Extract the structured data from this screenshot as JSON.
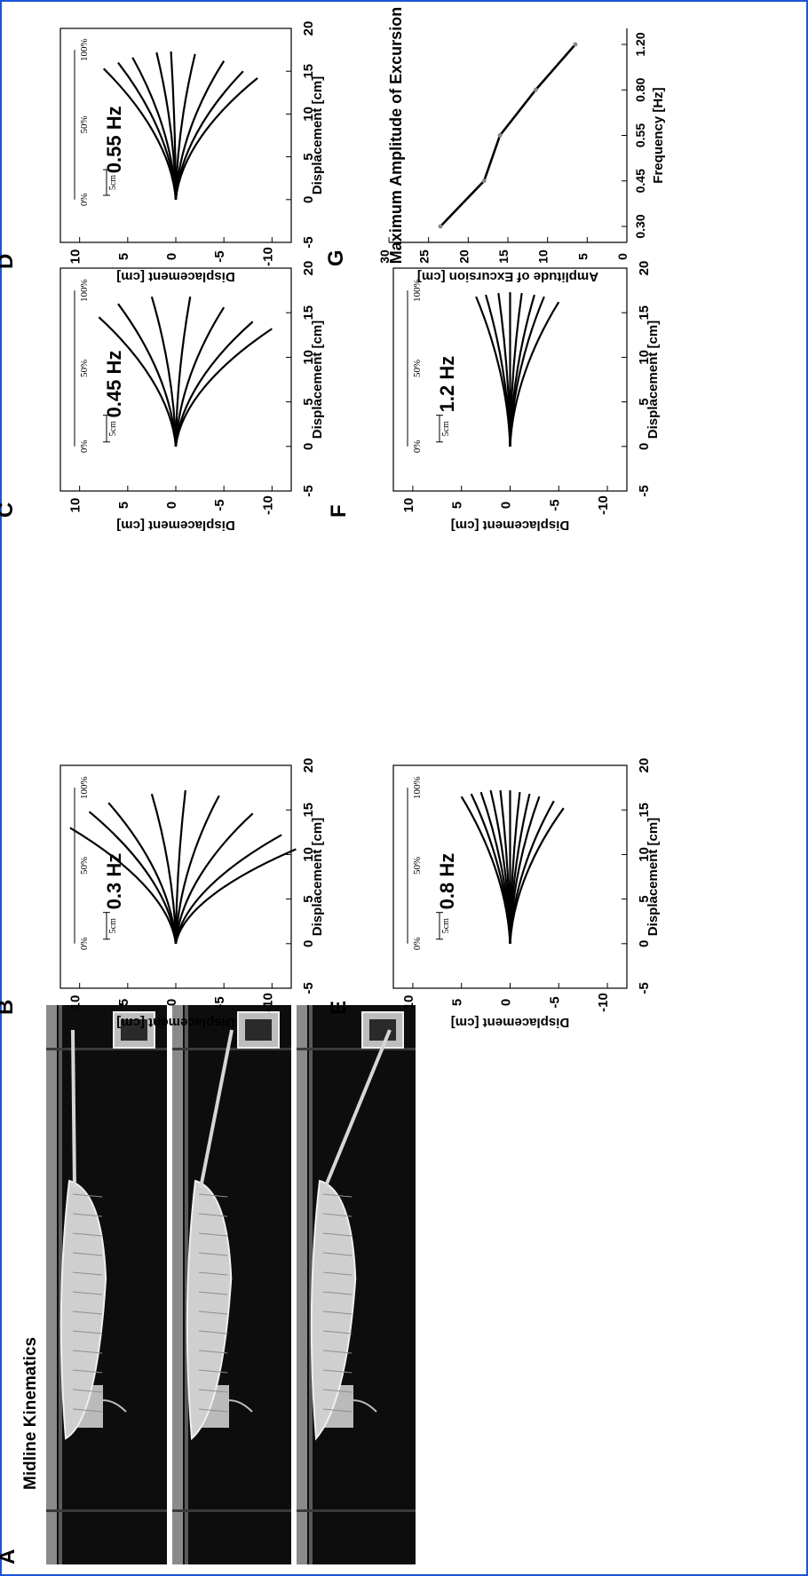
{
  "figure_labels": {
    "A": "A",
    "B": "B",
    "C": "C",
    "D": "D",
    "E": "E",
    "F": "F",
    "G": "G"
  },
  "photo_panel": {
    "title": "Midline Kinematics",
    "frame_count": 3
  },
  "kinematic_axis": {
    "xlabel": "Displacement [cm]",
    "ylabel": "Displacement [cm]",
    "xticks": [
      "-5",
      "0",
      "5",
      "10",
      "15",
      "20"
    ],
    "yticks": [
      "10",
      "5",
      "0",
      "-5",
      "-10"
    ],
    "scale_bar_label": "5cm",
    "pct_labels": [
      "0%",
      "50%",
      "100%"
    ]
  },
  "chart_data": [
    {
      "panel": "B",
      "type": "line",
      "title": "0.3 Hz",
      "xlabel": "Displacement [cm]",
      "ylabel": "Displacement [cm]",
      "xlim": [
        -5,
        20
      ],
      "ylim": [
        -12,
        12
      ],
      "tip_y": [
        11,
        9,
        7,
        2.5,
        -1,
        -4.5,
        -8,
        -11,
        -12.5
      ],
      "tip_x": [
        13,
        14.8,
        15.8,
        16.8,
        17.2,
        16.6,
        14.6,
        12.2,
        10.6
      ],
      "grid": false
    },
    {
      "panel": "C",
      "type": "line",
      "title": "0.45 Hz",
      "xlabel": "Displacement [cm]",
      "ylabel": "Displacement [cm]",
      "xlim": [
        -5,
        20
      ],
      "ylim": [
        -12,
        12
      ],
      "tip_y": [
        8,
        6,
        2.5,
        -1.5,
        -5,
        -8,
        -10
      ],
      "tip_x": [
        14.5,
        16,
        16.8,
        16.8,
        15.6,
        14,
        13.2
      ],
      "grid": false
    },
    {
      "panel": "D",
      "type": "line",
      "title": "0.55 Hz",
      "xlabel": "Displacement [cm]",
      "ylabel": "Displacement [cm]",
      "xlim": [
        -5,
        20
      ],
      "ylim": [
        -12,
        12
      ],
      "tip_y": [
        7.5,
        6,
        4.5,
        2,
        0.5,
        -2,
        -5,
        -7,
        -8.5
      ],
      "tip_x": [
        15.3,
        16,
        16.6,
        17.2,
        17.3,
        17,
        16.2,
        15,
        14.2
      ],
      "grid": false
    },
    {
      "panel": "E",
      "type": "line",
      "title": "0.8 Hz",
      "xlabel": "Displacement [cm]",
      "ylabel": "Displacement [cm]",
      "xlim": [
        -5,
        20
      ],
      "ylim": [
        -12,
        12
      ],
      "tip_y": [
        5,
        4,
        3,
        2,
        1,
        0,
        -1,
        -2,
        -3,
        -4.5,
        -5.5
      ],
      "tip_x": [
        16.5,
        16.8,
        17,
        17.2,
        17.2,
        17.2,
        17,
        16.8,
        16.5,
        16,
        15.2
      ],
      "grid": false
    },
    {
      "panel": "F",
      "type": "line",
      "title": "1.2 Hz",
      "xlabel": "Displacement [cm]",
      "ylabel": "Displacement [cm]",
      "xlim": [
        -5,
        20
      ],
      "ylim": [
        -12,
        12
      ],
      "tip_y": [
        3.5,
        2.5,
        1.2,
        0,
        -1.2,
        -2.5,
        -3.5,
        -5
      ],
      "tip_x": [
        16.8,
        17,
        17.2,
        17.3,
        17.2,
        17,
        16.8,
        16.2
      ],
      "grid": false
    },
    {
      "panel": "G",
      "type": "line",
      "title": "Maximum Amplitude of Excursion",
      "xlabel": "Frequency [Hz]",
      "ylabel": "Amplitude of Excursion [cm]",
      "categories": [
        "0.30",
        "0.45",
        "0.55",
        "0.80",
        "1.20"
      ],
      "values": [
        23.5,
        18,
        16,
        11.5,
        6.5
      ],
      "ylim": [
        0,
        30
      ],
      "yticks": [
        "0",
        "5",
        "10",
        "15",
        "20",
        "25",
        "30"
      ],
      "grid": false
    }
  ]
}
